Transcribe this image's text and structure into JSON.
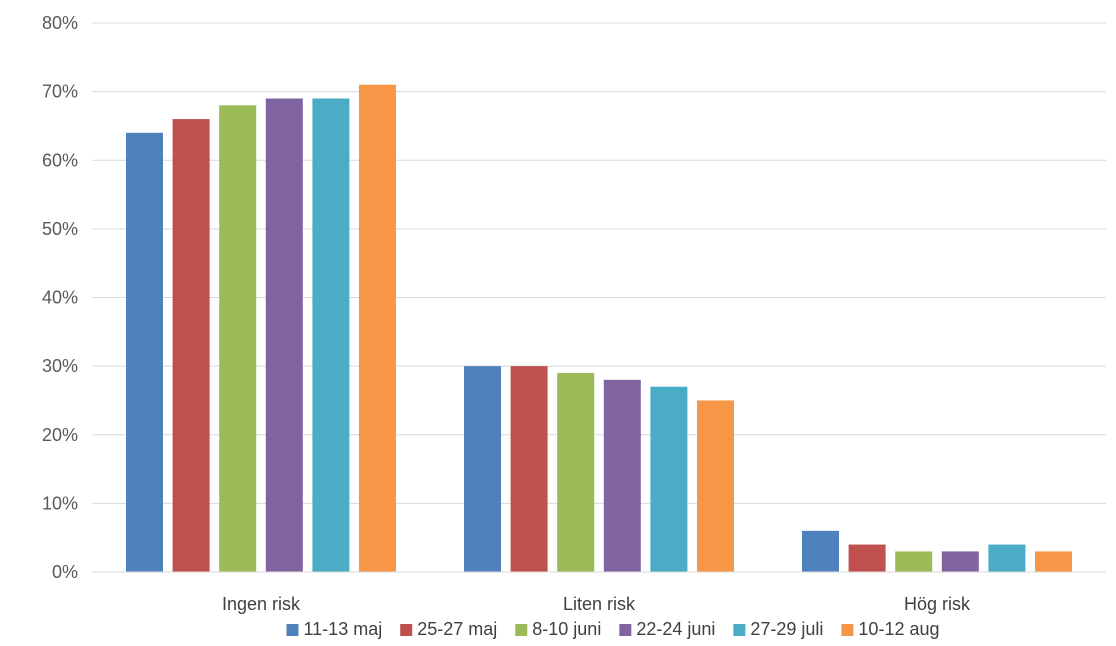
{
  "chart_data": {
    "type": "bar",
    "title": "",
    "xlabel": "",
    "ylabel": "",
    "categories": [
      "Ingen risk",
      "Liten risk",
      "Hög risk"
    ],
    "series": [
      {
        "name": "11-13 maj",
        "color": "#4F81BD",
        "values": [
          64,
          30,
          6
        ]
      },
      {
        "name": "25-27 maj",
        "color": "#C0504D",
        "values": [
          66,
          30,
          4
        ]
      },
      {
        "name": "8-10 juni",
        "color": "#9BBB59",
        "values": [
          68,
          29,
          3
        ]
      },
      {
        "name": "22-24 juni",
        "color": "#8064A2",
        "values": [
          69,
          28,
          3
        ]
      },
      {
        "name": "27-29 juli",
        "color": "#4BACC6",
        "values": [
          69,
          27,
          4
        ]
      },
      {
        "name": "10-12 aug",
        "color": "#F79646",
        "values": [
          71,
          25,
          3
        ]
      }
    ],
    "ylim": [
      0,
      80
    ],
    "yticks": [
      "0%",
      "10%",
      "20%",
      "30%",
      "40%",
      "50%",
      "60%",
      "70%",
      "80%"
    ],
    "grid": true,
    "legend_position": "bottom"
  }
}
